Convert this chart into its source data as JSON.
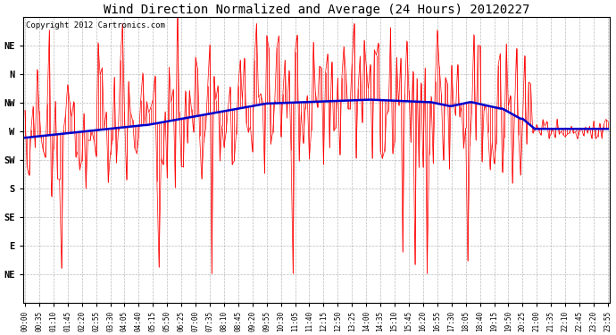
{
  "title": "Wind Direction Normalized and Average (24 Hours) 20120227",
  "copyright_text": "Copyright 2012 Cartronics.com",
  "background_color": "#ffffff",
  "plot_bg_color": "#ffffff",
  "grid_color": "#aaaaaa",
  "y_labels": [
    "NE",
    "N",
    "NW",
    "W",
    "SW",
    "S",
    "SE",
    "E",
    "NE"
  ],
  "y_values": [
    337.5,
    315,
    292.5,
    270,
    247.5,
    225,
    202.5,
    180,
    157.5
  ],
  "y_min": 135,
  "y_max": 360,
  "raw_color": "#ff0000",
  "avg_color": "#0000cc",
  "raw_linewidth": 0.5,
  "avg_linewidth": 1.8,
  "title_fontsize": 10,
  "tick_fontsize": 5.5,
  "label_fontsize": 7.5,
  "copyright_fontsize": 6.5,
  "figwidth": 6.9,
  "figheight": 3.75,
  "dpi": 100
}
